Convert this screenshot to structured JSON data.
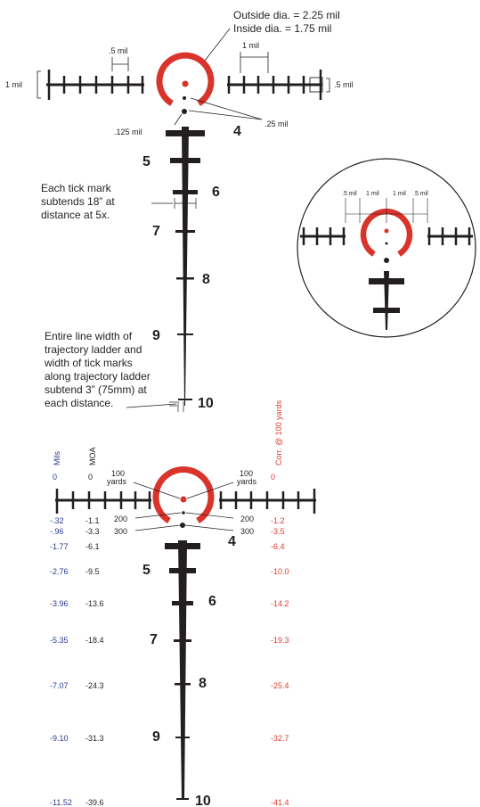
{
  "colors": {
    "reticle_red": "#d9342b",
    "ink": "#231f20",
    "mils_blue": "#2b3a8c",
    "corr_red": "#e03a2e"
  },
  "top": {
    "outside_dia": "Outside dia. = 2.25 mil",
    "inside_dia": "Inside dia. = 1.75 mil",
    "half_mil_left": ".5 mil",
    "one_mil_right": "1 mil",
    "one_mil_left": "1 mil",
    "half_mil_right": ".5 mil",
    "eighth_mil": ".125 mil",
    "quarter_mil": ".25 mil",
    "ladder_numbers": [
      "4",
      "5",
      "6",
      "7",
      "8",
      "9",
      "10"
    ],
    "tick_note": [
      "Each tick mark",
      "subtends 18” at",
      "distance at 5x."
    ],
    "line_note": [
      "Entire line width of",
      "trajectory ladder and",
      "width of tick marks",
      "along trajectory ladder",
      "subtend 3” (75mm) at",
      "each distance."
    ]
  },
  "inset": {
    "labels": [
      ".5 mil",
      "1 mil",
      "1 mil",
      ".5 mil"
    ]
  },
  "bottom": {
    "mils_header": "Mils",
    "moa_header": "MOA",
    "corr_header": "Corr. @ 100 yards",
    "yards_100_left": [
      "100",
      "yards"
    ],
    "yards_100_right": [
      "100",
      "yards"
    ],
    "y200": "200",
    "y300": "300",
    "ladder_numbers": [
      "4",
      "5",
      "6",
      "7",
      "8",
      "9",
      "10"
    ],
    "rows": [
      {
        "mils": "0",
        "moa": "0",
        "corr": "0"
      },
      {
        "mils": "-.32",
        "moa": "-1.1",
        "corr": "-1.2"
      },
      {
        "mils": "-.96",
        "moa": "-3.3",
        "corr": "-3.5"
      },
      {
        "mils": "-1.77",
        "moa": "-6.1",
        "corr": "-6.4"
      },
      {
        "mils": "-2.76",
        "moa": "-9.5",
        "corr": "-10.0"
      },
      {
        "mils": "-3.96",
        "moa": "-13.6",
        "corr": "-14.2"
      },
      {
        "mils": "-5.35",
        "moa": "-18.4",
        "corr": "-19.3"
      },
      {
        "mils": "-7.07",
        "moa": "-24.3",
        "corr": "-25.4"
      },
      {
        "mils": "-9.10",
        "moa": "-31.3",
        "corr": "-32.7"
      },
      {
        "mils": "-11.52",
        "moa": "-39.6",
        "corr": "-41.4"
      }
    ]
  }
}
